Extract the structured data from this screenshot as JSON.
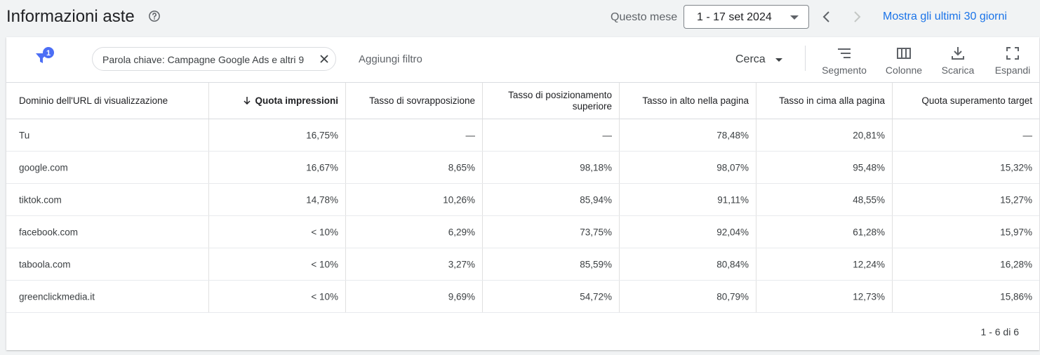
{
  "header": {
    "title": "Informazioni aste",
    "range_label": "Questo mese",
    "date_value": "1 - 17 set 2024",
    "last30_label": "Mostra gli ultimi 30 giorni"
  },
  "toolbar": {
    "filter_count": "1",
    "chip_text": "Parola chiave: Campagne Google Ads e altri 9",
    "add_filter_label": "Aggiungi filtro",
    "search_label": "Cerca",
    "segment_label": "Segmento",
    "columns_label": "Colonne",
    "download_label": "Scarica",
    "expand_label": "Espandi"
  },
  "table": {
    "headers": [
      "Dominio dell'URL di visualizzazione",
      "Quota impressioni",
      "Tasso di sovrapposizione",
      "Tasso di posizionamento superiore",
      "Tasso in alto nella pagina",
      "Tasso in cima alla pagina",
      "Quota superamento target"
    ],
    "rows": [
      [
        "Tu",
        "16,75%",
        "—",
        "—",
        "78,48%",
        "20,81%",
        "—"
      ],
      [
        "google.com",
        "16,67%",
        "8,65%",
        "98,18%",
        "98,07%",
        "95,48%",
        "15,32%"
      ],
      [
        "tiktok.com",
        "14,78%",
        "10,26%",
        "85,94%",
        "91,11%",
        "48,55%",
        "15,27%"
      ],
      [
        "facebook.com",
        "< 10%",
        "6,29%",
        "73,75%",
        "92,04%",
        "61,28%",
        "15,97%"
      ],
      [
        "taboola.com",
        "< 10%",
        "3,27%",
        "85,59%",
        "80,84%",
        "12,24%",
        "16,28%"
      ],
      [
        "greenclickmedia.it",
        "< 10%",
        "9,69%",
        "54,72%",
        "80,79%",
        "12,73%",
        "15,86%"
      ]
    ]
  },
  "footer": {
    "pager": "1 - 6 di 6"
  },
  "colors": {
    "accent": "#1a73e8",
    "filter_badge": "#4c6ef5"
  }
}
